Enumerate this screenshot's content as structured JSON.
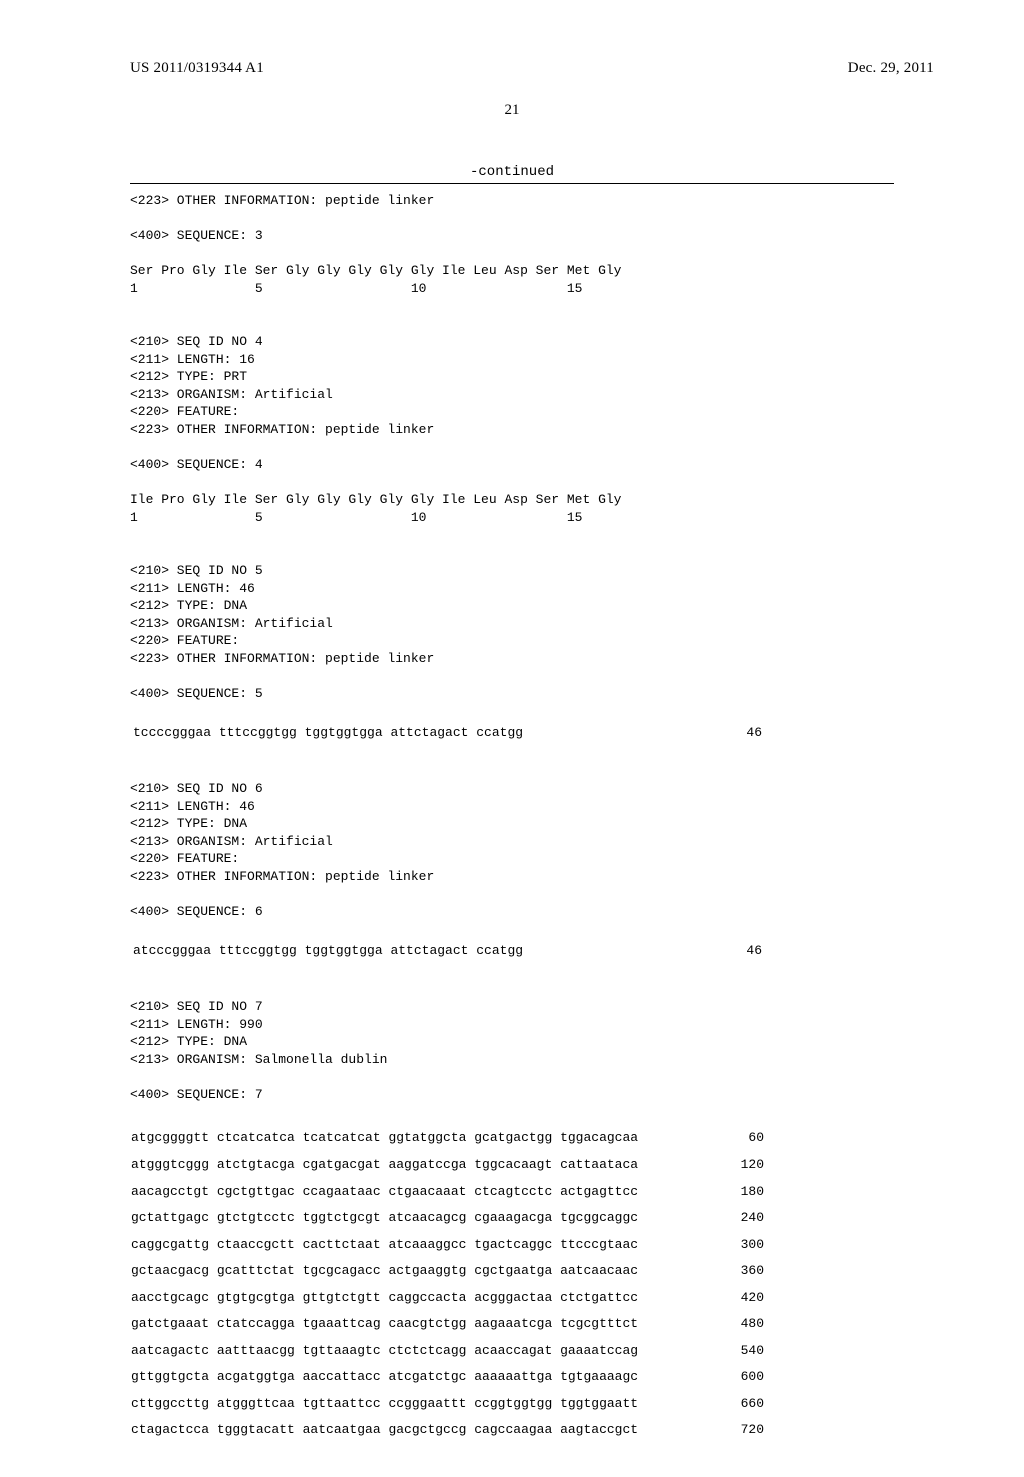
{
  "header": {
    "pub_number": "US 2011/0319344 A1",
    "date": "Dec. 29, 2011"
  },
  "page_number": "21",
  "continued_label": "-continued",
  "seq3": {
    "tag_223": "<223> OTHER INFORMATION: peptide linker",
    "tag_400": "<400> SEQUENCE: 3",
    "aa_line": "Ser Pro Gly Ile Ser Gly Gly Gly Gly Gly Ile Leu Asp Ser Met Gly",
    "num_line": "1               5                   10                  15"
  },
  "seq4": {
    "tag_210": "<210> SEQ ID NO 4",
    "tag_211": "<211> LENGTH: 16",
    "tag_212": "<212> TYPE: PRT",
    "tag_213": "<213> ORGANISM: Artificial",
    "tag_220": "<220> FEATURE:",
    "tag_223": "<223> OTHER INFORMATION: peptide linker",
    "tag_400": "<400> SEQUENCE: 4",
    "aa_line": "Ile Pro Gly Ile Ser Gly Gly Gly Gly Gly Ile Leu Asp Ser Met Gly",
    "num_line": "1               5                   10                  15"
  },
  "seq5": {
    "tag_210": "<210> SEQ ID NO 5",
    "tag_211": "<211> LENGTH: 46",
    "tag_212": "<212> TYPE: DNA",
    "tag_213": "<213> ORGANISM: Artificial",
    "tag_220": "<220> FEATURE:",
    "tag_223": "<223> OTHER INFORMATION: peptide linker",
    "tag_400": "<400> SEQUENCE: 5",
    "dna_line": "tccccgggaa tttccggtgg tggtggtgga attctagact ccatgg",
    "len": "46"
  },
  "seq6": {
    "tag_210": "<210> SEQ ID NO 6",
    "tag_211": "<211> LENGTH: 46",
    "tag_212": "<212> TYPE: DNA",
    "tag_213": "<213> ORGANISM: Artificial",
    "tag_220": "<220> FEATURE:",
    "tag_223": "<223> OTHER INFORMATION: peptide linker",
    "tag_400": "<400> SEQUENCE: 6",
    "dna_line": "atcccgggaa tttccggtgg tggtggtgga attctagact ccatgg",
    "len": "46"
  },
  "seq7": {
    "tag_210": "<210> SEQ ID NO 7",
    "tag_211": "<211> LENGTH: 990",
    "tag_212": "<212> TYPE: DNA",
    "tag_213": "<213> ORGANISM: Salmonella dublin",
    "tag_400": "<400> SEQUENCE: 7",
    "rows": [
      {
        "seq": "atgcggggtt ctcatcatca tcatcatcat ggtatggcta gcatgactgg tggacagcaa",
        "n": "60"
      },
      {
        "seq": "atgggtcggg atctgtacga cgatgacgat aaggatccga tggcacaagt cattaataca",
        "n": "120"
      },
      {
        "seq": "aacagcctgt cgctgttgac ccagaataac ctgaacaaat ctcagtcctc actgagttcc",
        "n": "180"
      },
      {
        "seq": "gctattgagc gtctgtcctc tggtctgcgt atcaacagcg cgaaagacga tgcggcaggc",
        "n": "240"
      },
      {
        "seq": "caggcgattg ctaaccgctt cacttctaat atcaaaggcc tgactcaggc ttcccgtaac",
        "n": "300"
      },
      {
        "seq": "gctaacgacg gcatttctat tgcgcagacc actgaaggtg cgctgaatga aatcaacaac",
        "n": "360"
      },
      {
        "seq": "aacctgcagc gtgtgcgtga gttgtctgtt caggccacta acgggactaa ctctgattcc",
        "n": "420"
      },
      {
        "seq": "gatctgaaat ctatccagga tgaaattcag caacgtctgg aagaaatcga tcgcgtttct",
        "n": "480"
      },
      {
        "seq": "aatcagactc aatttaacgg tgttaaagtc ctctctcagg acaaccagat gaaaatccag",
        "n": "540"
      },
      {
        "seq": "gttggtgcta acgatggtga aaccattacc atcgatctgc aaaaaattga tgtgaaaagc",
        "n": "600"
      },
      {
        "seq": "cttggccttg atgggttcaa tgttaattcc ccgggaattt ccggtggtgg tggtggaatt",
        "n": "660"
      },
      {
        "seq": "ctagactcca tgggtacatt aatcaatgaa gacgctgccg cagccaagaa aagtaccgct",
        "n": "720"
      }
    ]
  }
}
